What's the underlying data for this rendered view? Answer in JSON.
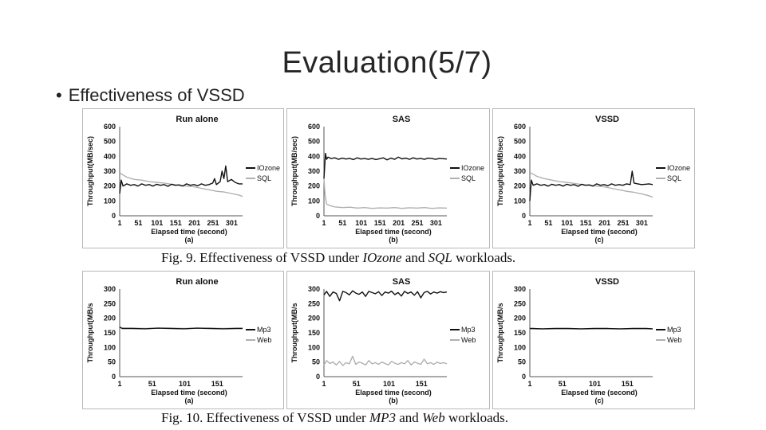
{
  "slide": {
    "title": "Evaluation(5/7)",
    "bullet": "Effectiveness of VSSD"
  },
  "fig9": {
    "caption_prefix": "Fig. 9. Effectiveness of VSSD under ",
    "caption_w1": "IOzone",
    "caption_mid": " and ",
    "caption_w2": "SQL",
    "caption_suffix": " workloads."
  },
  "fig10": {
    "caption_prefix": "Fig. 10. Effectiveness of VSSD under ",
    "caption_w1": "MP3",
    "caption_mid": " and ",
    "caption_w2": "Web",
    "caption_suffix": " workloads."
  },
  "colors": {
    "series_dark": "#111111",
    "series_light": "#b0b0b0",
    "panel_border": "#b8b8b8"
  },
  "chart_data": [
    {
      "type": "line",
      "panel": "fig9a",
      "title": "Run alone",
      "sublabel": "(a)",
      "xlabel": "Elapsed time (second)",
      "ylabel": "Throughput(MB/sec)",
      "ylim": [
        0,
        600
      ],
      "yticks": [
        "0",
        "100",
        "200",
        "300",
        "400",
        "500",
        "600"
      ],
      "xlim": [
        1,
        330
      ],
      "xticks": [
        1,
        51,
        101,
        151,
        201,
        251,
        301
      ],
      "series": [
        {
          "name": "IOzone",
          "color": "#111111",
          "x": [
            1,
            5,
            10,
            20,
            30,
            40,
            50,
            60,
            70,
            80,
            90,
            100,
            110,
            120,
            130,
            140,
            150,
            160,
            170,
            180,
            190,
            200,
            210,
            220,
            230,
            240,
            250,
            255,
            260,
            270,
            275,
            280,
            285,
            290,
            300,
            310,
            320,
            330
          ],
          "values": [
            150,
            240,
            200,
            215,
            205,
            210,
            200,
            215,
            205,
            210,
            200,
            212,
            205,
            210,
            198,
            212,
            205,
            208,
            200,
            215,
            205,
            210,
            202,
            215,
            205,
            210,
            220,
            250,
            210,
            230,
            300,
            250,
            335,
            230,
            245,
            225,
            215,
            215
          ]
        },
        {
          "name": "SQL",
          "color": "#b0b0b0",
          "x": [
            1,
            10,
            20,
            40,
            60,
            80,
            100,
            120,
            140,
            160,
            180,
            200,
            220,
            240,
            260,
            280,
            300,
            320,
            330
          ],
          "values": [
            290,
            275,
            260,
            245,
            240,
            230,
            225,
            220,
            212,
            205,
            200,
            195,
            185,
            175,
            165,
            160,
            150,
            140,
            130
          ]
        }
      ]
    },
    {
      "type": "line",
      "panel": "fig9b",
      "title": "SAS",
      "sublabel": "(b)",
      "xlabel": "Elapsed time (second)",
      "ylabel": "Throughput(MB/sec)",
      "ylim": [
        0,
        600
      ],
      "yticks": [
        "0",
        "100",
        "200",
        "300",
        "400",
        "500",
        "600"
      ],
      "xlim": [
        1,
        330
      ],
      "xticks": [
        1,
        51,
        101,
        151,
        201,
        251,
        301
      ],
      "series": [
        {
          "name": "IOzone",
          "color": "#111111",
          "x": [
            1,
            5,
            8,
            12,
            20,
            30,
            40,
            50,
            60,
            70,
            80,
            90,
            100,
            110,
            120,
            130,
            140,
            150,
            160,
            170,
            180,
            190,
            200,
            210,
            220,
            230,
            240,
            250,
            260,
            270,
            280,
            290,
            300,
            310,
            320,
            330
          ],
          "values": [
            250,
            420,
            380,
            395,
            385,
            390,
            380,
            388,
            382,
            386,
            378,
            390,
            382,
            385,
            380,
            386,
            378,
            384,
            390,
            376,
            388,
            380,
            395,
            383,
            388,
            380,
            390,
            382,
            386,
            380,
            388,
            385,
            380,
            386,
            384,
            382
          ]
        },
        {
          "name": "SQL",
          "color": "#b0b0b0",
          "x": [
            1,
            4,
            8,
            15,
            30,
            50,
            70,
            90,
            110,
            130,
            150,
            170,
            190,
            210,
            230,
            250,
            270,
            290,
            310,
            330
          ],
          "values": [
            250,
            140,
            80,
            70,
            60,
            55,
            58,
            52,
            55,
            50,
            53,
            52,
            55,
            50,
            54,
            52,
            55,
            50,
            53,
            52
          ]
        }
      ]
    },
    {
      "type": "line",
      "panel": "fig9c",
      "title": "VSSD",
      "sublabel": "(c)",
      "xlabel": "Elapsed time (second)",
      "ylabel": "Throughput(MB/sec)",
      "ylim": [
        0,
        600
      ],
      "yticks": [
        "0",
        "100",
        "200",
        "300",
        "400",
        "500",
        "600"
      ],
      "xlim": [
        1,
        330
      ],
      "xticks": [
        1,
        51,
        101,
        151,
        201,
        251,
        301
      ],
      "series": [
        {
          "name": "IOzone",
          "color": "#111111",
          "x": [
            1,
            5,
            10,
            20,
            30,
            40,
            50,
            60,
            70,
            80,
            90,
            100,
            110,
            120,
            130,
            140,
            150,
            160,
            170,
            180,
            190,
            200,
            210,
            220,
            230,
            240,
            250,
            260,
            270,
            275,
            280,
            290,
            300,
            310,
            320,
            330
          ],
          "values": [
            100,
            240,
            205,
            215,
            205,
            210,
            200,
            212,
            205,
            210,
            200,
            212,
            205,
            210,
            198,
            212,
            205,
            208,
            200,
            215,
            205,
            210,
            202,
            215,
            205,
            210,
            205,
            215,
            210,
            300,
            220,
            215,
            210,
            212,
            215,
            210
          ]
        },
        {
          "name": "SQL",
          "color": "#b0b0b0",
          "x": [
            1,
            10,
            20,
            40,
            60,
            80,
            100,
            120,
            140,
            160,
            180,
            200,
            220,
            240,
            260,
            280,
            300,
            320,
            330
          ],
          "values": [
            290,
            280,
            265,
            250,
            240,
            230,
            225,
            218,
            210,
            205,
            200,
            195,
            185,
            175,
            165,
            158,
            148,
            135,
            125
          ]
        }
      ]
    },
    {
      "type": "line",
      "panel": "fig10a",
      "title": "Run alone",
      "sublabel": "(a)",
      "xlabel": "Elapsed time (second)",
      "ylabel": "Throughput(MB/s",
      "ylim": [
        0,
        300
      ],
      "yticks": [
        "0",
        "50",
        "100",
        "150",
        "200",
        "250",
        "300"
      ],
      "xlim": [
        1,
        190
      ],
      "xticks": [
        1,
        51,
        101,
        151
      ],
      "series": [
        {
          "name": "Mp3",
          "color": "#111111",
          "x": [
            1,
            5,
            20,
            40,
            60,
            80,
            100,
            120,
            140,
            160,
            180,
            190
          ],
          "values": [
            170,
            165,
            165,
            164,
            166,
            165,
            164,
            166,
            165,
            164,
            165,
            165
          ]
        },
        {
          "name": "Web",
          "color": "#b0b0b0",
          "x": [
            1,
            5,
            20,
            40,
            60,
            80,
            100,
            120,
            140,
            160,
            180,
            190
          ],
          "values": [
            168,
            166,
            166,
            165,
            166,
            166,
            165,
            166,
            166,
            165,
            166,
            166
          ]
        }
      ]
    },
    {
      "type": "line",
      "panel": "fig10b",
      "title": "SAS",
      "sublabel": "(b)",
      "xlabel": "Elapsed time (second)",
      "ylabel": "Throughput(MB/s",
      "ylim": [
        0,
        300
      ],
      "yticks": [
        "0",
        "50",
        "100",
        "150",
        "200",
        "250",
        "300"
      ],
      "xlim": [
        1,
        190
      ],
      "xticks": [
        1,
        51,
        101,
        151
      ],
      "series": [
        {
          "name": "Mp3",
          "color": "#111111",
          "x": [
            1,
            5,
            10,
            15,
            20,
            25,
            30,
            35,
            40,
            45,
            50,
            55,
            60,
            65,
            70,
            75,
            80,
            85,
            90,
            95,
            100,
            105,
            110,
            115,
            120,
            125,
            130,
            135,
            140,
            145,
            150,
            155,
            160,
            165,
            170,
            175,
            180,
            185,
            190
          ],
          "values": [
            280,
            292,
            275,
            290,
            285,
            260,
            292,
            288,
            280,
            294,
            286,
            282,
            290,
            275,
            292,
            288,
            284,
            291,
            278,
            290,
            286,
            293,
            281,
            288,
            276,
            292,
            285,
            290,
            279,
            291,
            270,
            288,
            292,
            283,
            290,
            286,
            291,
            288,
            290
          ]
        },
        {
          "name": "Web",
          "color": "#b0b0b0",
          "x": [
            1,
            5,
            10,
            15,
            20,
            25,
            30,
            35,
            40,
            45,
            50,
            55,
            60,
            65,
            70,
            75,
            80,
            85,
            90,
            95,
            100,
            105,
            110,
            115,
            120,
            125,
            130,
            135,
            140,
            145,
            150,
            155,
            160,
            165,
            170,
            175,
            180,
            185,
            190
          ],
          "values": [
            40,
            55,
            45,
            50,
            40,
            52,
            38,
            48,
            44,
            70,
            42,
            50,
            46,
            40,
            55,
            44,
            48,
            42,
            50,
            45,
            40,
            52,
            46,
            42,
            48,
            44,
            55,
            40,
            50,
            46,
            42,
            60,
            44,
            48,
            42,
            50,
            45,
            48,
            44
          ]
        }
      ]
    },
    {
      "type": "line",
      "panel": "fig10c",
      "title": "VSSD",
      "sublabel": "(c)",
      "xlabel": "Elapsed time (second)",
      "ylabel": "Throughput(MB/s",
      "ylim": [
        0,
        300
      ],
      "yticks": [
        "0",
        "50",
        "100",
        "150",
        "200",
        "250",
        "300"
      ],
      "xlim": [
        1,
        190
      ],
      "xticks": [
        1,
        51,
        101,
        151
      ],
      "series": [
        {
          "name": "Mp3",
          "color": "#111111",
          "x": [
            1,
            5,
            20,
            40,
            60,
            80,
            100,
            120,
            140,
            160,
            180,
            190
          ],
          "values": [
            165,
            165,
            164,
            165,
            165,
            164,
            165,
            165,
            164,
            165,
            165,
            164
          ]
        },
        {
          "name": "Web",
          "color": "#b0b0b0",
          "x": [
            1,
            5,
            20,
            40,
            60,
            80,
            100,
            120,
            140,
            160,
            180,
            190
          ],
          "values": [
            164,
            164,
            163,
            164,
            164,
            163,
            164,
            164,
            163,
            164,
            164,
            163
          ]
        }
      ]
    }
  ]
}
